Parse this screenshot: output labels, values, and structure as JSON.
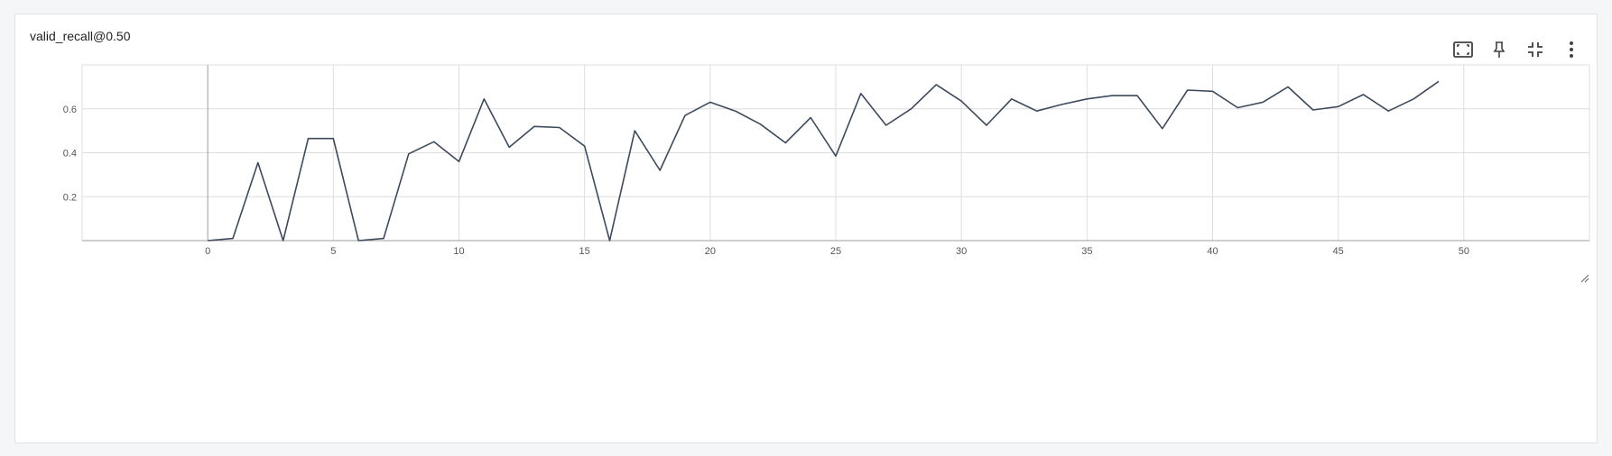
{
  "card": {
    "title": "valid_recall@0.50",
    "toolbar": [
      {
        "icon": "fit-to-data-icon"
      },
      {
        "icon": "pin-icon"
      },
      {
        "icon": "collapse-icon"
      },
      {
        "icon": "more-vert-icon"
      }
    ]
  },
  "colors": {
    "line": "#3d4a5c",
    "grid": "#dedede",
    "zero_axis": "#9e9e9e"
  },
  "chart_data": {
    "type": "line",
    "title": "valid_recall@0.50",
    "xlabel": "",
    "ylabel": "",
    "xlim": [
      -5,
      55
    ],
    "ylim": [
      0,
      0.8
    ],
    "x_ticks": [
      0,
      5,
      10,
      15,
      20,
      25,
      30,
      35,
      40,
      45,
      50
    ],
    "y_ticks": [
      0.2,
      0.4,
      0.6
    ],
    "y_tick_labels": [
      "0.2",
      "0.4",
      "0.6"
    ],
    "grid": true,
    "series": [
      {
        "x": [
          0,
          1,
          2,
          3,
          4,
          5,
          6,
          7,
          8,
          9,
          10,
          11,
          12,
          13,
          14,
          15,
          16,
          17,
          18,
          19,
          20,
          21,
          22,
          23,
          24,
          25,
          26,
          27,
          28,
          29,
          30,
          31,
          32,
          33,
          34,
          35,
          36,
          37,
          38,
          39,
          40,
          41,
          42,
          43,
          44,
          45,
          46,
          47,
          48,
          49
        ],
        "y": [
          0.0,
          0.01,
          0.355,
          0.0,
          0.465,
          0.465,
          0.0,
          0.01,
          0.395,
          0.45,
          0.36,
          0.645,
          0.425,
          0.52,
          0.515,
          0.43,
          0.0,
          0.5,
          0.32,
          0.57,
          0.63,
          0.59,
          0.53,
          0.445,
          0.56,
          0.385,
          0.67,
          0.525,
          0.6,
          0.71,
          0.635,
          0.525,
          0.645,
          0.59,
          0.62,
          0.645,
          0.66,
          0.66,
          0.51,
          0.685,
          0.68,
          0.605,
          0.63,
          0.7,
          0.595,
          0.61,
          0.665,
          0.59,
          0.645,
          0.725
        ]
      }
    ]
  }
}
